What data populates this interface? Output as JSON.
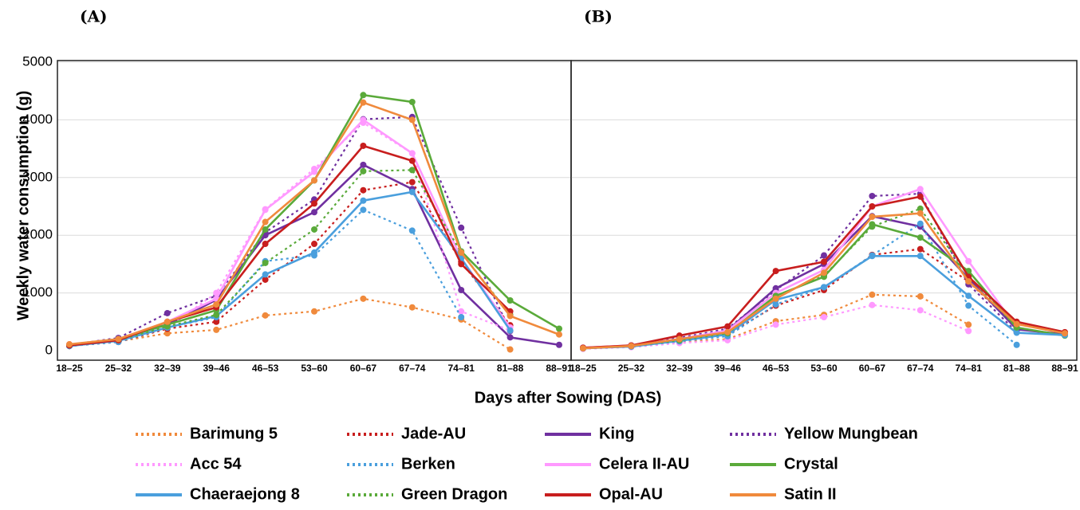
{
  "chart_data": [
    {
      "type": "line",
      "label": "(A)",
      "ylabel": "Weekly water consumption (g)",
      "xlabel": "Days after Sowing (DAS)",
      "categories": [
        "18–25",
        "25–32",
        "32–39",
        "39–46",
        "46–53",
        "53–60",
        "60–67",
        "67–74",
        "74–81",
        "81–88",
        "88–91"
      ],
      "ylim": [
        0,
        5000
      ],
      "yticks": [
        0,
        1000,
        2000,
        3000,
        4000,
        5000
      ],
      "grid": true,
      "series": [
        {
          "name": "Barimung 5",
          "color": "#f08a3c",
          "style": "dotted",
          "values": [
            100,
            160,
            300,
            360,
            610,
            680,
            900,
            750,
            540,
            20,
            null
          ]
        },
        {
          "name": "Jade-AU",
          "color": "#c81e1e",
          "style": "dotted",
          "values": [
            80,
            150,
            380,
            500,
            1230,
            1850,
            2780,
            2920,
            1540,
            440,
            null
          ]
        },
        {
          "name": "King",
          "color": "#7030a0",
          "style": "solid",
          "values": [
            80,
            200,
            450,
            880,
            2000,
            2400,
            3220,
            2800,
            1050,
            230,
            100
          ]
        },
        {
          "name": "Yellow Mungbean",
          "color": "#7030a0",
          "style": "dotted",
          "values": [
            100,
            220,
            650,
            950,
            2050,
            2620,
            4010,
            4050,
            2130,
            340,
            null
          ]
        },
        {
          "name": "Acc 54",
          "color": "#ff99ff",
          "style": "dotted",
          "values": [
            110,
            200,
            400,
            1000,
            2450,
            3150,
            3950,
            3420,
            680,
            350,
            null
          ]
        },
        {
          "name": "Berken",
          "color": "#4a9fdd",
          "style": "dotted",
          "values": [
            80,
            150,
            400,
            580,
            1550,
            1650,
            2440,
            2080,
            580,
            null,
            null
          ]
        },
        {
          "name": "Celera II-AU",
          "color": "#ff99ff",
          "style": "solid",
          "values": [
            100,
            200,
            500,
            900,
            2440,
            3100,
            4000,
            3420,
            1600,
            400,
            null
          ]
        },
        {
          "name": "Crystal",
          "color": "#5aaa3a",
          "style": "solid",
          "values": [
            100,
            200,
            450,
            700,
            2100,
            2950,
            4430,
            4310,
            1720,
            870,
            380
          ]
        },
        {
          "name": "Chaeraejong 8",
          "color": "#4a9fdd",
          "style": "solid",
          "values": [
            80,
            170,
            400,
            600,
            1320,
            1700,
            2600,
            2750,
            1600,
            350,
            null
          ]
        },
        {
          "name": "Green Dragon",
          "color": "#5aaa3a",
          "style": "dotted",
          "values": [
            90,
            180,
            420,
            620,
            1520,
            2100,
            3110,
            3130,
            1700,
            620,
            null
          ]
        },
        {
          "name": "Opal-AU",
          "color": "#c81e1e",
          "style": "solid",
          "values": [
            90,
            180,
            500,
            750,
            1850,
            2550,
            3550,
            3290,
            1500,
            680,
            null
          ]
        },
        {
          "name": "Satin II",
          "color": "#f08a3c",
          "style": "solid",
          "values": [
            110,
            200,
            500,
            800,
            2230,
            2950,
            4300,
            4000,
            1700,
            600,
            280
          ]
        }
      ]
    },
    {
      "type": "line",
      "label": "(B)",
      "categories": [
        "18–25",
        "25–32",
        "32–39",
        "39–46",
        "46–53",
        "53–60",
        "60–67",
        "67–74",
        "74–81",
        "81–88",
        "88–91"
      ],
      "ylim": [
        0,
        5000
      ],
      "yticks": [
        0,
        1000,
        2000,
        3000,
        4000,
        5000
      ],
      "grid": true,
      "series": [
        {
          "color": "#f08a3c",
          "style": "dotted",
          "values": [
            40,
            80,
            150,
            200,
            510,
            620,
            970,
            940,
            450,
            null,
            null
          ]
        },
        {
          "color": "#c81e1e",
          "style": "dotted",
          "values": [
            40,
            80,
            180,
            280,
            780,
            1050,
            1660,
            1760,
            1200,
            400,
            null
          ]
        },
        {
          "color": "#7030a0",
          "style": "solid",
          "values": [
            50,
            80,
            200,
            350,
            1080,
            1500,
            2330,
            2150,
            1250,
            370,
            280
          ]
        },
        {
          "color": "#7030a0",
          "style": "dotted",
          "values": [
            50,
            90,
            220,
            380,
            1050,
            1650,
            2680,
            2720,
            1150,
            320,
            null
          ]
        },
        {
          "color": "#ff99ff",
          "style": "dotted",
          "values": [
            30,
            60,
            130,
            180,
            450,
            580,
            790,
            700,
            340,
            null,
            null
          ]
        },
        {
          "color": "#4a9fdd",
          "style": "dotted",
          "values": [
            40,
            70,
            160,
            250,
            800,
            1100,
            1650,
            2200,
            780,
            100,
            null
          ]
        },
        {
          "color": "#ff99ff",
          "style": "solid",
          "values": [
            50,
            90,
            200,
            350,
            1000,
            1400,
            2500,
            2800,
            1550,
            400,
            null
          ]
        },
        {
          "color": "#5aaa3a",
          "style": "solid",
          "values": [
            40,
            80,
            190,
            300,
            950,
            1280,
            2190,
            1960,
            1380,
            400,
            260
          ]
        },
        {
          "color": "#4a9fdd",
          "style": "solid",
          "values": [
            40,
            70,
            170,
            280,
            880,
            1100,
            1640,
            1640,
            950,
            310,
            270
          ]
        },
        {
          "color": "#5aaa3a",
          "style": "dotted",
          "values": [
            40,
            80,
            180,
            300,
            930,
            1300,
            2150,
            2460,
            1300,
            400,
            null
          ]
        },
        {
          "color": "#c81e1e",
          "style": "solid",
          "values": [
            50,
            90,
            260,
            420,
            1380,
            1540,
            2500,
            2670,
            1280,
            500,
            320
          ]
        },
        {
          "color": "#f08a3c",
          "style": "solid",
          "values": [
            40,
            80,
            200,
            320,
            900,
            1350,
            2320,
            2380,
            1200,
            460,
            300
          ]
        }
      ]
    }
  ]
}
